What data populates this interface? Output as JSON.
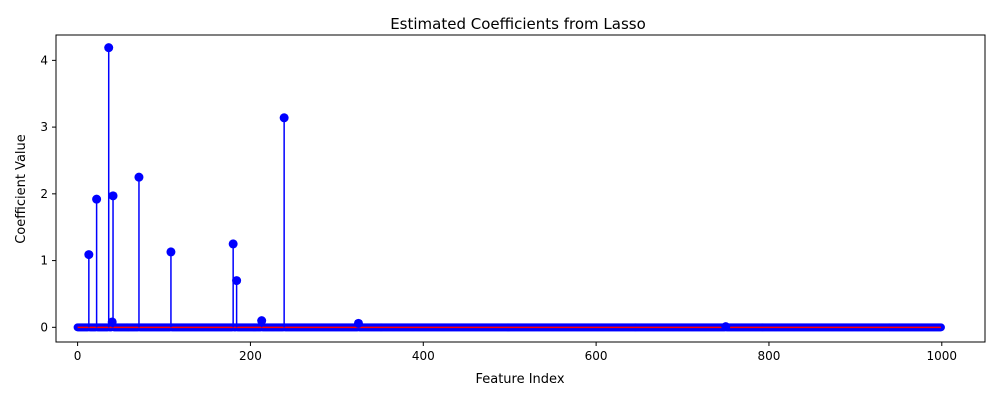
{
  "chart_data": {
    "type": "stem",
    "title": "Estimated Coefficients from Lasso",
    "xlabel": "Feature Index",
    "ylabel": "Coefficient Value",
    "xlim": [
      -25,
      1050
    ],
    "ylim": [
      -0.22,
      4.38
    ],
    "xticks": [
      0,
      200,
      400,
      600,
      800,
      1000
    ],
    "yticks": [
      0,
      1,
      2,
      3,
      4
    ],
    "n_features": 1000,
    "grid": false,
    "legend": "none",
    "colors": {
      "stem": "#0000ff",
      "marker": "#0000ff",
      "baseline": "#ff0000"
    },
    "nonzero": [
      {
        "x": 13,
        "y": 1.09
      },
      {
        "x": 22,
        "y": 1.92
      },
      {
        "x": 36,
        "y": 4.19
      },
      {
        "x": 40,
        "y": 0.08
      },
      {
        "x": 41,
        "y": 1.97
      },
      {
        "x": 71,
        "y": 2.25
      },
      {
        "x": 108,
        "y": 1.13
      },
      {
        "x": 180,
        "y": 1.25
      },
      {
        "x": 184,
        "y": 0.7
      },
      {
        "x": 213,
        "y": 0.1
      },
      {
        "x": 239,
        "y": 3.14
      },
      {
        "x": 325,
        "y": 0.06
      },
      {
        "x": 750,
        "y": 0.01
      }
    ]
  }
}
